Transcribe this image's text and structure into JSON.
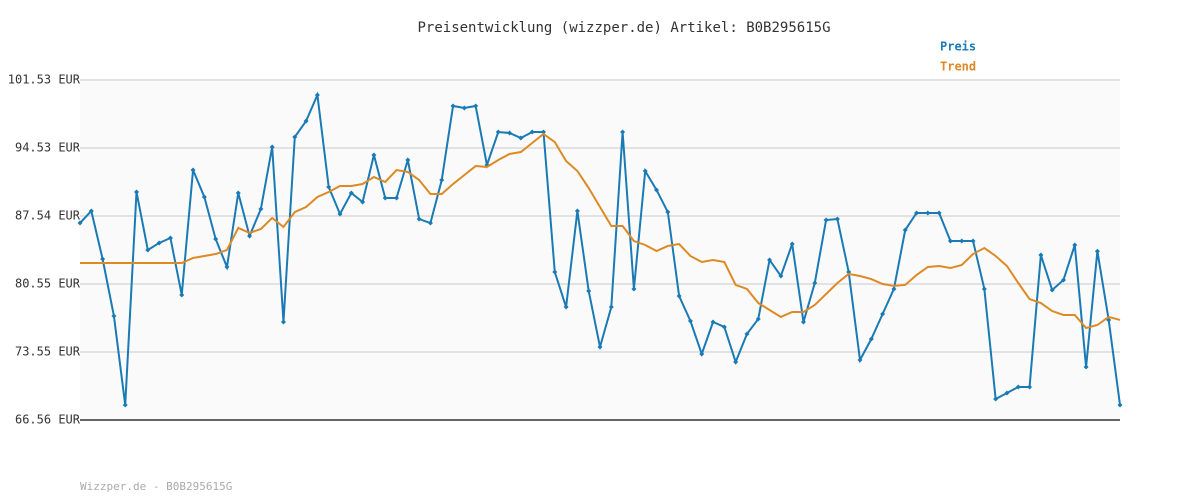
{
  "chart_data": {
    "type": "line",
    "title": "Preisentwicklung (wizzper.de) Artikel: B0B295615G",
    "footer": "Wizzper.de - B0B295615G",
    "ylim": [
      66.56,
      101.53
    ],
    "yticks": [
      {
        "value": 66.56,
        "label": "66.56 EUR"
      },
      {
        "value": 73.55,
        "label": "73.55 EUR"
      },
      {
        "value": 80.55,
        "label": "80.55 EUR"
      },
      {
        "value": 87.54,
        "label": "87.54 EUR"
      },
      {
        "value": 94.53,
        "label": "94.53 EUR"
      },
      {
        "value": 101.53,
        "label": "101.53 EUR"
      }
    ],
    "grid": true,
    "legend": "top-right",
    "series": [
      {
        "name": "Preis",
        "color": "#1a7ab5",
        "markers": true,
        "values": [
          86.82,
          88.06,
          83.12,
          77.26,
          68.1,
          90.01,
          84.05,
          84.77,
          85.28,
          79.42,
          92.27,
          89.5,
          85.18,
          82.3,
          89.91,
          85.49,
          88.26,
          94.64,
          76.64,
          95.67,
          97.31,
          99.99,
          90.53,
          87.75,
          89.91,
          88.98,
          93.82,
          89.39,
          89.39,
          93.3,
          87.23,
          86.82,
          91.24,
          98.86,
          98.65,
          98.86,
          92.79,
          96.18,
          96.08,
          95.56,
          96.18,
          96.18,
          81.78,
          78.18,
          88.06,
          79.83,
          74.07,
          78.18,
          96.18,
          80.04,
          92.17,
          90.22,
          87.95,
          79.31,
          76.74,
          73.35,
          76.64,
          76.13,
          72.53,
          75.41,
          76.95,
          83.02,
          81.37,
          84.66,
          76.64,
          80.65,
          87.13,
          87.23,
          81.78,
          72.73,
          74.89,
          77.46,
          80.04,
          86.1,
          87.85,
          87.85,
          87.85,
          84.97,
          84.97,
          84.97,
          80.04,
          68.72,
          69.34,
          69.96,
          69.96,
          83.53,
          79.93,
          80.96,
          84.56,
          72.01,
          83.92,
          76.85,
          68.1
        ]
      },
      {
        "name": "Trend",
        "color": "#dd8a25",
        "markers": false,
        "values": [
          82.71,
          82.71,
          82.71,
          82.71,
          82.71,
          82.71,
          82.71,
          82.71,
          82.71,
          82.71,
          83.22,
          83.43,
          83.63,
          84.05,
          86.31,
          85.8,
          86.21,
          87.34,
          86.41,
          87.95,
          88.47,
          89.5,
          90.01,
          90.63,
          90.63,
          90.83,
          91.55,
          91.04,
          92.27,
          92.07,
          91.24,
          89.8,
          89.8,
          90.83,
          91.76,
          92.68,
          92.58,
          93.3,
          93.92,
          94.12,
          95.05,
          95.98,
          95.15,
          93.2,
          92.17,
          90.42,
          88.47,
          86.51,
          86.51,
          84.97,
          84.56,
          83.94,
          84.46,
          84.66,
          83.43,
          82.81,
          83.02,
          82.81,
          80.45,
          80.04,
          78.59,
          77.87,
          77.16,
          77.67,
          77.67,
          78.39,
          79.52,
          80.65,
          81.58,
          81.37,
          81.06,
          80.55,
          80.35,
          80.45,
          81.47,
          82.3,
          82.4,
          82.19,
          82.5,
          83.63,
          84.25,
          83.43,
          82.4,
          80.65,
          79.0,
          78.59,
          77.77,
          77.36,
          77.36,
          76.02,
          76.33,
          77.16,
          76.85
        ]
      }
    ]
  }
}
